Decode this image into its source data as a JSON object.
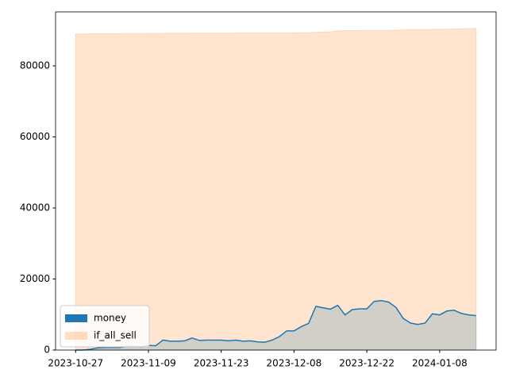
{
  "chart_data": {
    "type": "area",
    "categories": [
      "2023-10-27",
      null,
      null,
      null,
      null,
      null,
      null,
      null,
      null,
      null,
      "2023-11-09",
      null,
      null,
      null,
      null,
      null,
      null,
      null,
      null,
      null,
      "2023-11-23",
      null,
      null,
      null,
      null,
      null,
      null,
      null,
      null,
      null,
      "2023-12-08",
      null,
      null,
      null,
      null,
      null,
      null,
      null,
      null,
      null,
      "2023-12-22",
      null,
      null,
      null,
      null,
      null,
      null,
      null,
      null,
      null,
      "2024-01-08",
      null,
      null,
      null,
      null,
      null
    ],
    "series": [
      {
        "name": "money",
        "color": "#1f77b4",
        "values": [
          0,
          0,
          200,
          600,
          700,
          700,
          700,
          1000,
          1000,
          900,
          1300,
          1200,
          2800,
          2500,
          2500,
          2600,
          3400,
          2700,
          2800,
          2800,
          2800,
          2600,
          2800,
          2500,
          2600,
          2300,
          2200,
          2800,
          3800,
          5400,
          5400,
          6600,
          7500,
          12300,
          11900,
          11500,
          12600,
          9900,
          11400,
          11600,
          11600,
          13700,
          13900,
          13500,
          12000,
          8900,
          7600,
          7200,
          7600,
          10200,
          9900,
          11000,
          11200,
          10300,
          9900,
          9700
        ]
      },
      {
        "name": "if_all_sell",
        "color": "#ff7f0e",
        "values": [
          89000,
          89000,
          89050,
          89050,
          89050,
          89050,
          89050,
          89100,
          89100,
          89100,
          89150,
          89150,
          89200,
          89200,
          89200,
          89200,
          89250,
          89250,
          89250,
          89250,
          89250,
          89250,
          89300,
          89300,
          89300,
          89300,
          89300,
          89300,
          89300,
          89300,
          89300,
          89350,
          89350,
          89500,
          89500,
          89600,
          89900,
          89950,
          89950,
          89950,
          90000,
          90000,
          90000,
          90000,
          90050,
          90200,
          90200,
          90250,
          90250,
          90300,
          90300,
          90350,
          90400,
          90500,
          90550,
          90600
        ]
      }
    ],
    "ylim": [
      0,
      95200
    ],
    "yticks": [
      0,
      20000,
      40000,
      60000,
      80000
    ],
    "legend": "lower left"
  }
}
